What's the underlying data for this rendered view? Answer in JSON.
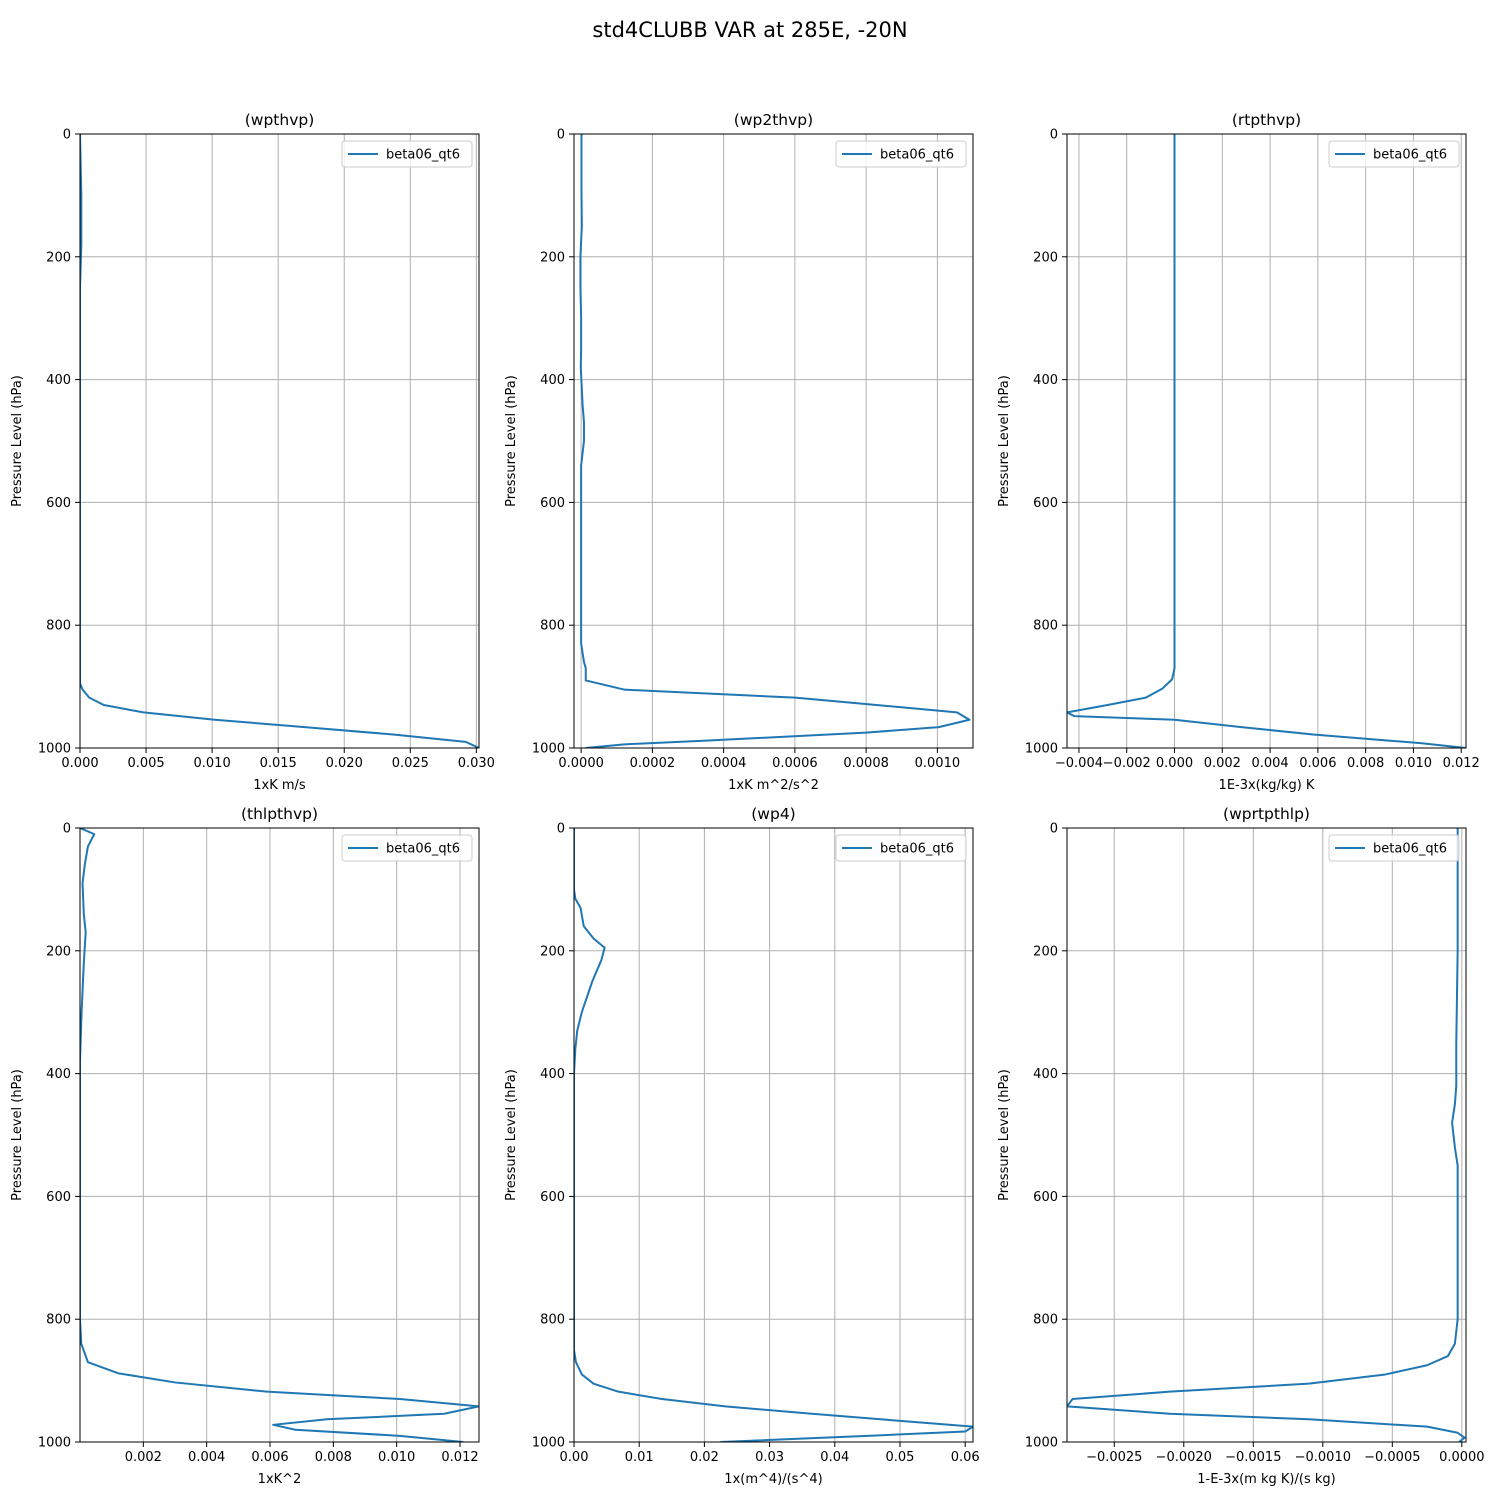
{
  "figure": {
    "suptitle": "std4CLUBB VAR at 285E, -20N"
  },
  "colors": {
    "line": "#1f77b4",
    "grid": "#b0b0b0",
    "axes": "#000000",
    "background": "#ffffff"
  },
  "chart_data": [
    {
      "type": "line",
      "title": "(wpthvp)",
      "xlabel": "1xK m/s",
      "ylabel": "Pressure Level (hPa)",
      "xlim": [
        0.0,
        0.0302
      ],
      "ylim": [
        1000,
        0
      ],
      "xticks": [
        0,
        0.005,
        0.01,
        0.015,
        0.02,
        0.025,
        0.03
      ],
      "xtick_labels": [
        "0.000",
        "0.005",
        "0.010",
        "0.015",
        "0.020",
        "0.025",
        "0.030"
      ],
      "yticks": [
        0,
        200,
        400,
        600,
        800,
        1000
      ],
      "ytick_labels": [
        "0",
        "200",
        "400",
        "600",
        "800",
        "1000"
      ],
      "grid": true,
      "legend": "upper right",
      "series": [
        {
          "name": "beta06_qt6",
          "x": [
            0.0,
            0.0001,
            0.0001,
            0.0,
            0.0,
            0.0,
            0.0,
            0.0,
            0.0,
            0.0,
            0.0,
            0.0002,
            0.0007,
            0.0018,
            0.0048,
            0.0102,
            0.017,
            0.0237,
            0.0292,
            0.0302
          ],
          "y": [
            0,
            100,
            180,
            250,
            350,
            450,
            550,
            650,
            750,
            850,
            895,
            905,
            918,
            930,
            942,
            954,
            966,
            978,
            990,
            1000
          ]
        }
      ]
    },
    {
      "type": "line",
      "title": "(wp2thvp)",
      "xlabel": "1xK m^2/s^2",
      "ylabel": "Pressure Level (hPa)",
      "xlim": [
        -2e-05,
        0.0011
      ],
      "ylim": [
        1000,
        0
      ],
      "xticks": [
        0,
        0.0002,
        0.0004,
        0.0006,
        0.0008,
        0.001
      ],
      "xtick_labels": [
        "0.0000",
        "0.0002",
        "0.0004",
        "0.0006",
        "0.0008",
        "0.0010"
      ],
      "yticks": [
        0,
        200,
        400,
        600,
        800,
        1000
      ],
      "ytick_labels": [
        "0",
        "200",
        "400",
        "600",
        "800",
        "1000"
      ],
      "grid": true,
      "legend": "upper right",
      "series": [
        {
          "name": "beta06_qt6",
          "x": [
            1e-06,
            1e-06,
            2e-06,
            -2e-06,
            -2e-06,
            0.0,
            0.0,
            -1e-06,
            4e-06,
            8e-06,
            8e-06,
            0.0,
            0.0,
            0.0,
            0.0,
            8e-06,
            1.3e-05,
            1.3e-05,
            0.000122,
            0.000601,
            0.000829,
            0.001055,
            0.00109,
            0.001004,
            0.000799,
            0.000351,
            0.000121,
            1.3e-05
          ],
          "y": [
            0,
            90,
            150,
            200,
            250,
            300,
            350,
            380,
            440,
            470,
            500,
            540,
            600,
            700,
            830,
            860,
            870,
            890,
            905,
            918,
            930,
            942,
            954,
            966,
            975,
            988,
            994,
            1000
          ]
        }
      ]
    },
    {
      "type": "line",
      "title": "(rtpthvp)",
      "xlabel": "1E-3x(kg/kg) K",
      "ylabel": "Pressure Level (hPa)",
      "xlim": [
        -0.0045,
        0.0122
      ],
      "ylim": [
        1000,
        0
      ],
      "xticks": [
        -0.004,
        -0.002,
        0,
        0.002,
        0.004,
        0.006,
        0.008,
        0.01,
        0.012
      ],
      "xtick_labels": [
        "−0.004",
        "−0.002",
        "0.000",
        "0.002",
        "0.004",
        "0.006",
        "0.008",
        "0.010",
        "0.012"
      ],
      "yticks": [
        0,
        200,
        400,
        600,
        800,
        1000
      ],
      "ytick_labels": [
        "0",
        "200",
        "400",
        "600",
        "800",
        "1000"
      ],
      "grid": true,
      "legend": "upper right",
      "series": [
        {
          "name": "beta06_qt6",
          "x": [
            0.0,
            0.0,
            0.0,
            0.0,
            0.0,
            0.0,
            -0.0001,
            -0.0005,
            -0.0012,
            -0.0028,
            -0.0045,
            -0.0042,
            0.0,
            0.0028,
            0.0058,
            0.008,
            0.0103,
            0.0122
          ],
          "y": [
            0,
            200,
            400,
            600,
            800,
            870,
            888,
            903,
            918,
            930,
            942,
            948,
            954,
            966,
            978,
            985,
            992,
            1000
          ]
        }
      ]
    },
    {
      "type": "line",
      "title": "(thlpthvp)",
      "xlabel": "1xK^2",
      "ylabel": "Pressure Level (hPa)",
      "xlim": [
        0.0,
        0.0126
      ],
      "ylim": [
        1000,
        0
      ],
      "xticks": [
        0.002,
        0.004,
        0.006,
        0.008,
        0.01,
        0.012
      ],
      "xtick_labels": [
        "0.002",
        "0.004",
        "0.006",
        "0.008",
        "0.010",
        "0.012"
      ],
      "yticks": [
        0,
        200,
        400,
        600,
        800,
        1000
      ],
      "ytick_labels": [
        "0",
        "200",
        "400",
        "600",
        "800",
        "1000"
      ],
      "grid": true,
      "legend": "upper right",
      "series": [
        {
          "name": "beta06_qt6",
          "x": [
            0.0,
            0.00045,
            0.00025,
            0.00015,
            8e-05,
            0.00012,
            0.00018,
            0.00012,
            5e-05,
            0.0,
            0.0,
            0.0,
            0.0,
            4e-05,
            0.00025,
            0.0012,
            0.003,
            0.0059,
            0.0101,
            0.0126,
            0.0115,
            0.0078,
            0.0061,
            0.0068,
            0.0101,
            0.0121
          ],
          "y": [
            0,
            10,
            30,
            60,
            90,
            140,
            170,
            220,
            300,
            380,
            500,
            650,
            800,
            840,
            870,
            888,
            903,
            918,
            930,
            942,
            954,
            963,
            972,
            980,
            990,
            1000
          ]
        }
      ]
    },
    {
      "type": "line",
      "title": "(wp4)",
      "xlabel": "1x(m^4)/(s^4)",
      "ylabel": "Pressure Level (hPa)",
      "xlim": [
        0.0,
        0.0612
      ],
      "ylim": [
        1000,
        0
      ],
      "xticks": [
        0,
        0.01,
        0.02,
        0.03,
        0.04,
        0.05,
        0.06
      ],
      "xtick_labels": [
        "0.00",
        "0.01",
        "0.02",
        "0.03",
        "0.04",
        "0.05",
        "0.06"
      ],
      "yticks": [
        0,
        200,
        400,
        600,
        800,
        1000
      ],
      "ytick_labels": [
        "0",
        "200",
        "400",
        "600",
        "800",
        "1000"
      ],
      "grid": true,
      "legend": "upper right",
      "series": [
        {
          "name": "beta06_qt6",
          "x": [
            0.0,
            0.0,
            0.0002,
            0.001,
            0.0015,
            0.003,
            0.0047,
            0.0042,
            0.0028,
            0.0012,
            0.0005,
            0.0002,
            0.0,
            0.0,
            0.0,
            0.0,
            0.0003,
            0.0012,
            0.003,
            0.0068,
            0.0135,
            0.0232,
            0.0365,
            0.0505,
            0.0612,
            0.06,
            0.045,
            0.0225
          ],
          "y": [
            0,
            100,
            115,
            130,
            160,
            180,
            195,
            215,
            250,
            300,
            330,
            360,
            400,
            500,
            600,
            850,
            870,
            890,
            905,
            918,
            930,
            942,
            954,
            966,
            975,
            983,
            990,
            1000
          ]
        }
      ]
    },
    {
      "type": "line",
      "title": "(wprtpthlp)",
      "xlabel": "1-E-3x(m kg K)/(s kg)",
      "ylabel": "Pressure Level (hPa)",
      "xlim": [
        -0.00284,
        3e-05
      ],
      "ylim": [
        1000,
        0
      ],
      "xticks": [
        -0.0025,
        -0.002,
        -0.0015,
        -0.001,
        -0.0005,
        0.0
      ],
      "xtick_labels": [
        "−0.0025",
        "−0.0020",
        "−0.0015",
        "−0.0010",
        "−0.0005",
        "0.0000"
      ],
      "yticks": [
        0,
        200,
        400,
        600,
        800,
        1000
      ],
      "ytick_labels": [
        "0",
        "200",
        "400",
        "600",
        "800",
        "1000"
      ],
      "grid": true,
      "legend": "upper right",
      "series": [
        {
          "name": "beta06_qt6",
          "x": [
            -3e-05,
            -3e-05,
            -4e-05,
            -4e-05,
            -5e-05,
            -7e-05,
            -5e-05,
            -3e-05,
            -3e-05,
            -3e-05,
            -5e-05,
            -0.0001,
            -0.00025,
            -0.00055,
            -0.0011,
            -0.0021,
            -0.0028,
            -0.00284,
            -0.0021,
            -0.0011,
            -0.00025,
            -3e-05,
            2e-05,
            -2e-05
          ],
          "y": [
            0,
            200,
            350,
            420,
            450,
            480,
            520,
            550,
            650,
            800,
            840,
            860,
            875,
            890,
            905,
            918,
            930,
            942,
            954,
            963,
            975,
            985,
            993,
            1000
          ]
        }
      ]
    }
  ]
}
